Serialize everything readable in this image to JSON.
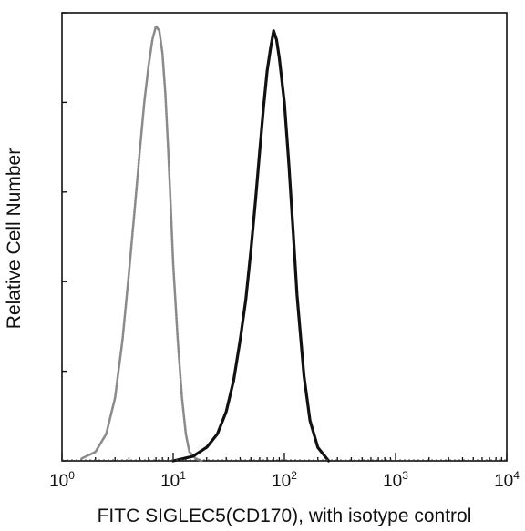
{
  "chart_data": {
    "type": "line",
    "title": "",
    "xlabel": "FITC SIGLEC5(CD170), with isotype control",
    "ylabel": "Relative Cell Number",
    "xscale": "log",
    "xlim": [
      1,
      10000
    ],
    "ylim": [
      0,
      100
    ],
    "grid": false,
    "legend": "none",
    "x_ticks": [
      {
        "base": "10",
        "exp": "0",
        "value": 1
      },
      {
        "base": "10",
        "exp": "1",
        "value": 10
      },
      {
        "base": "10",
        "exp": "2",
        "value": 100
      },
      {
        "base": "10",
        "exp": "3",
        "value": 1000
      },
      {
        "base": "10",
        "exp": "4",
        "value": 10000
      }
    ],
    "y_ticks": [
      0,
      20,
      40,
      60,
      80,
      100
    ],
    "series": [
      {
        "role": "isotype-control",
        "color": "#8a8a8a",
        "style": "dotted",
        "x": [
          1.5,
          2,
          2.5,
          3,
          3.5,
          4,
          4.5,
          5,
          5.5,
          6,
          6.5,
          7,
          7.5,
          8,
          8.5,
          9,
          9.5,
          10,
          11,
          12,
          13,
          14,
          16,
          18
        ],
        "y": [
          0.5,
          2,
          6,
          14,
          27,
          42,
          56,
          69,
          80,
          88,
          94,
          97,
          96,
          91,
          82,
          70,
          57,
          44,
          27,
          14,
          6,
          2,
          0.5,
          0
        ]
      },
      {
        "role": "siglec5-stained",
        "color": "#111111",
        "style": "solid",
        "x": [
          10,
          15,
          20,
          25,
          30,
          35,
          40,
          45,
          50,
          55,
          60,
          65,
          70,
          75,
          80,
          85,
          90,
          100,
          110,
          120,
          130,
          150,
          170,
          200,
          250
        ],
        "y": [
          0,
          1,
          3,
          6,
          11,
          18,
          27,
          36,
          47,
          58,
          69,
          79,
          87,
          92,
          96,
          94,
          90,
          80,
          66,
          51,
          37,
          19,
          9,
          3,
          0
        ]
      }
    ]
  }
}
